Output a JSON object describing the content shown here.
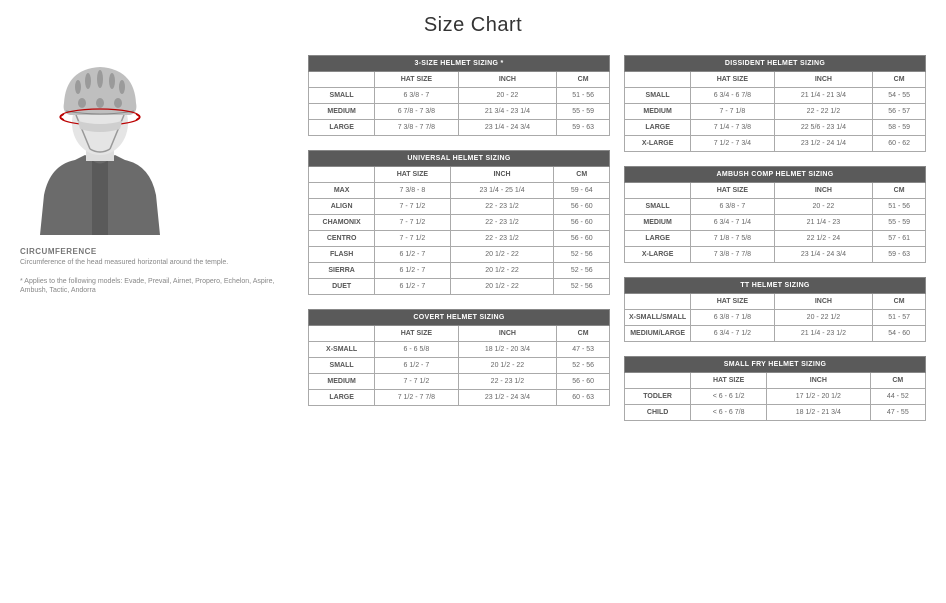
{
  "title": "Size Chart",
  "left": {
    "label": "CIRCUMFERENCE",
    "desc": "Circumference of the head measured horizontal around the temple.",
    "note": "* Applies to the following models: Evade, Prevail, Airnet, Propero, Echelon, Aspire, Ambush, Tactic, Andorra"
  },
  "colHeaders": [
    "HAT SIZE",
    "INCH",
    "CM"
  ],
  "tables": {
    "threeSize": {
      "title": "3-SIZE HELMET SIZING *",
      "rows": [
        [
          "SMALL",
          "6 3/8 - 7",
          "20 - 22",
          "51 - 56"
        ],
        [
          "MEDIUM",
          "6 7/8 - 7 3/8",
          "21 3/4 - 23 1/4",
          "55 - 59"
        ],
        [
          "LARGE",
          "7 3/8 - 7 7/8",
          "23 1/4 - 24 3/4",
          "59 - 63"
        ]
      ]
    },
    "universal": {
      "title": "UNIVERSAL HELMET SIZING",
      "rows": [
        [
          "MAX",
          "7 3/8 - 8",
          "23 1/4 - 25 1/4",
          "59 - 64"
        ],
        [
          "ALIGN",
          "7 - 7 1/2",
          "22 - 23 1/2",
          "56 - 60"
        ],
        [
          "CHAMONIX",
          "7 - 7 1/2",
          "22 - 23 1/2",
          "56 - 60"
        ],
        [
          "CENTRO",
          "7 - 7 1/2",
          "22 - 23 1/2",
          "56 - 60"
        ],
        [
          "FLASH",
          "6 1/2 - 7",
          "20 1/2 - 22",
          "52 - 56"
        ],
        [
          "SIERRA",
          "6 1/2 - 7",
          "20 1/2 - 22",
          "52 - 56"
        ],
        [
          "DUET",
          "6 1/2 - 7",
          "20 1/2 - 22",
          "52 - 56"
        ]
      ]
    },
    "covert": {
      "title": "COVERT HELMET SIZING",
      "rows": [
        [
          "X-SMALL",
          "6 - 6 5/8",
          "18 1/2 - 20 3/4",
          "47 - 53"
        ],
        [
          "SMALL",
          "6 1/2 - 7",
          "20 1/2 - 22",
          "52 - 56"
        ],
        [
          "MEDIUM",
          "7 - 7 1/2",
          "22 - 23 1/2",
          "56 - 60"
        ],
        [
          "LARGE",
          "7 1/2 - 7 7/8",
          "23 1/2 - 24 3/4",
          "60 - 63"
        ]
      ]
    },
    "dissident": {
      "title": "DISSIDENT HELMET SIZING",
      "rows": [
        [
          "SMALL",
          "6 3/4 - 6 7/8",
          "21 1/4 - 21 3/4",
          "54 - 55"
        ],
        [
          "MEDIUM",
          "7 - 7 1/8",
          "22 - 22 1/2",
          "56 - 57"
        ],
        [
          "LARGE",
          "7 1/4 - 7 3/8",
          "22 5/6 - 23 1/4",
          "58 - 59"
        ],
        [
          "X-LARGE",
          "7 1/2 - 7 3/4",
          "23 1/2 - 24 1/4",
          "60 - 62"
        ]
      ]
    },
    "ambush": {
      "title": "AMBUSH COMP HELMET SIZING",
      "rows": [
        [
          "SMALL",
          "6 3/8 - 7",
          "20 - 22",
          "51 - 56"
        ],
        [
          "MEDIUM",
          "6 3/4 - 7 1/4",
          "21 1/4 - 23",
          "55 - 59"
        ],
        [
          "LARGE",
          "7 1/8 - 7 5/8",
          "22 1/2 - 24",
          "57 - 61"
        ],
        [
          "X-LARGE",
          "7 3/8 - 7 7/8",
          "23 1/4 - 24 3/4",
          "59 - 63"
        ]
      ]
    },
    "tt": {
      "title": "TT HELMET SIZING",
      "rows": [
        [
          "X-SMALL/SMALL",
          "6 3/8 - 7 1/8",
          "20 - 22 1/2",
          "51 - 57"
        ],
        [
          "MEDIUM/LARGE",
          "6 3/4 - 7 1/2",
          "21 1/4 - 23 1/2",
          "54 - 60"
        ]
      ]
    },
    "smallFry": {
      "title": "SMALL FRY HELMET SIZING",
      "rows": [
        [
          "TODLER",
          "< 6 - 6 1/2",
          "17 1/2 - 20 1/2",
          "44 - 52"
        ],
        [
          "CHILD",
          "< 6 - 6 7/8",
          "18 1/2 - 21 3/4",
          "47 - 55"
        ]
      ]
    }
  }
}
